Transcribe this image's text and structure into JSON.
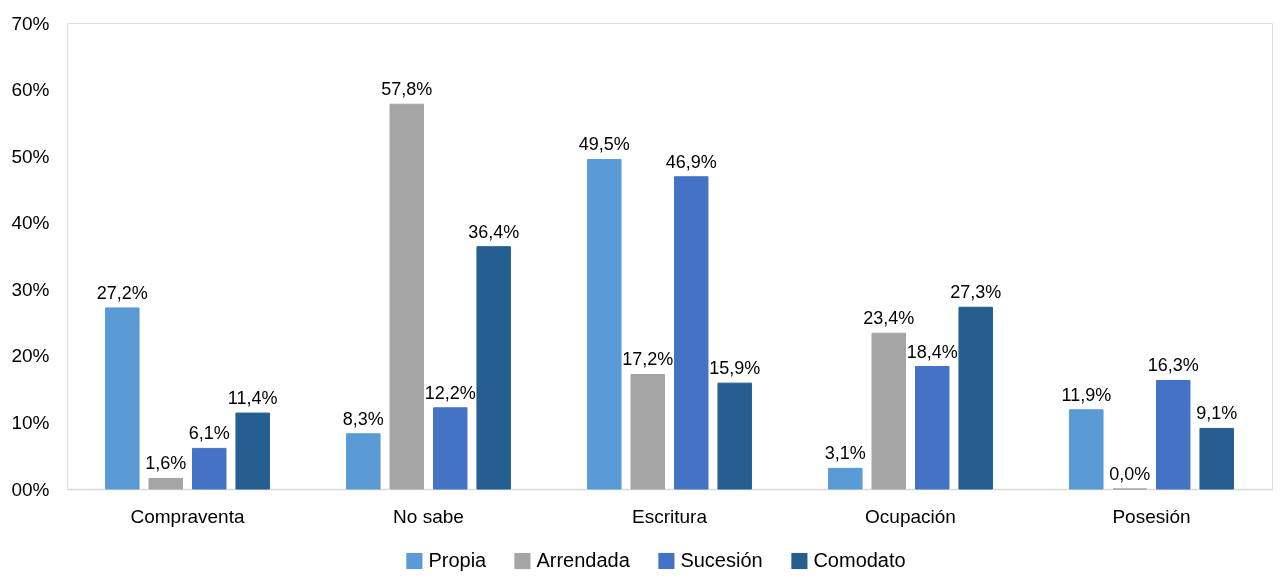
{
  "chart_data": {
    "type": "bar",
    "categories": [
      "Compraventa",
      "No sabe",
      "Escritura",
      "Ocupación",
      "Posesión"
    ],
    "series": [
      {
        "name": "Propia",
        "color": "#5b9bd5",
        "values": [
          27.2,
          8.3,
          49.5,
          3.1,
          11.9
        ],
        "value_labels": [
          "27,2%",
          "8,3%",
          "49,5%",
          "3,1%",
          "11,9%"
        ]
      },
      {
        "name": "Arrendada",
        "color": "#a5a5a5",
        "values": [
          1.6,
          57.8,
          17.2,
          23.4,
          0.0
        ],
        "value_labels": [
          "1,6%",
          "57,8%",
          "17,2%",
          "23,4%",
          "0,0%"
        ]
      },
      {
        "name": "Sucesión",
        "color": "#4472c4",
        "values": [
          6.1,
          12.2,
          46.9,
          18.4,
          16.3
        ],
        "value_labels": [
          "6,1%",
          "12,2%",
          "46,9%",
          "18,4%",
          "16,3%"
        ]
      },
      {
        "name": "Comodato",
        "color": "#255e91",
        "values": [
          11.4,
          36.4,
          15.9,
          27.3,
          9.1
        ],
        "value_labels": [
          "11,4%",
          "36,4%",
          "15,9%",
          "27,3%",
          "9,1%"
        ]
      }
    ],
    "ylim": [
      0,
      70
    ],
    "yticks": [
      {
        "value": 0,
        "label": "00%"
      },
      {
        "value": 10,
        "label": "10%"
      },
      {
        "value": 20,
        "label": "20%"
      },
      {
        "value": 30,
        "label": "30%"
      },
      {
        "value": 40,
        "label": "40%"
      },
      {
        "value": 50,
        "label": "50%"
      },
      {
        "value": 60,
        "label": "60%"
      },
      {
        "value": 70,
        "label": "70%"
      }
    ],
    "legend": "bottom"
  }
}
